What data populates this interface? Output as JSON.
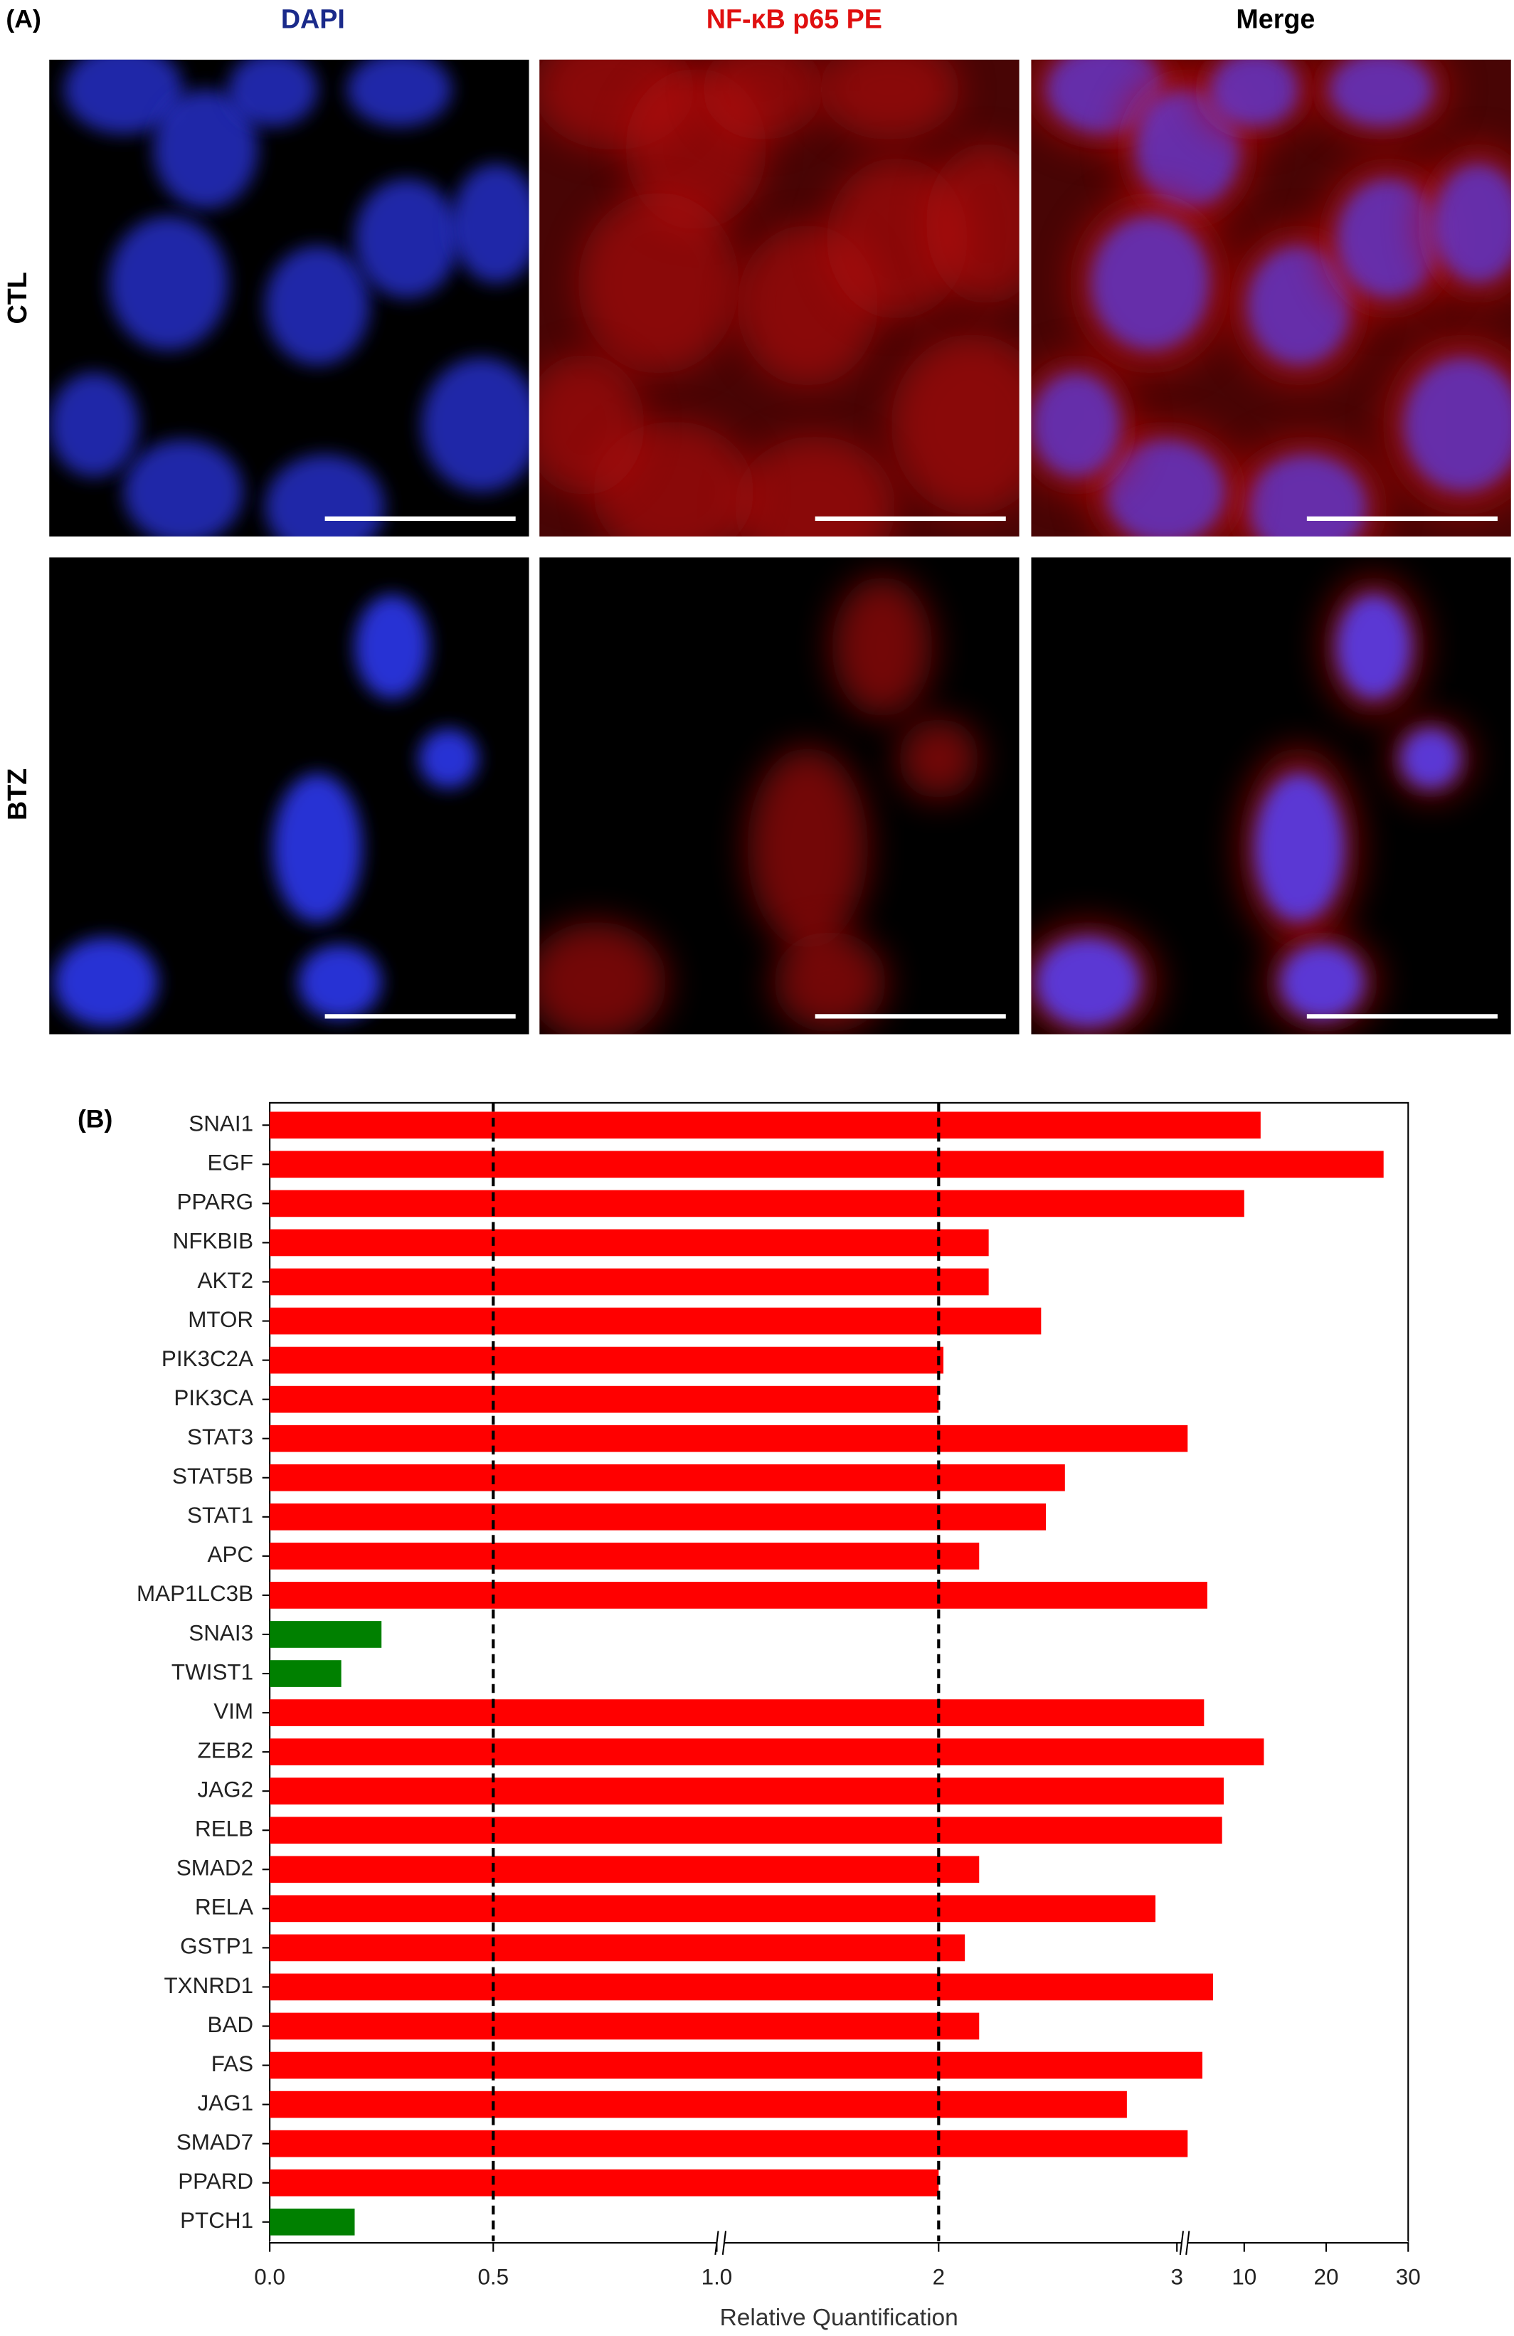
{
  "panel_a": {
    "label": "(A)",
    "columns": [
      "DAPI",
      "NF-κB p65 PE",
      "Merge"
    ],
    "rows": [
      "CTL",
      "BTZ"
    ]
  },
  "chart_data": {
    "type": "hbar",
    "panel_label": "(B)",
    "x_label": "Relative Quantification",
    "categories": [
      "SNAI1",
      "EGF",
      "PPARG",
      "NFKBIB",
      "AKT2",
      "MTOR",
      "PIK3C2A",
      "PIK3CA",
      "STAT3",
      "STAT5B",
      "STAT1",
      "APC",
      "MAP1LC3B",
      "SNAI3",
      "TWIST1",
      "VIM",
      "ZEB2",
      "JAG2",
      "RELB",
      "SMAD2",
      "RELA",
      "GSTP1",
      "TXNRD1",
      "BAD",
      "FAS",
      "JAG1",
      "SMAD7",
      "PPARD",
      "PTCH1"
    ],
    "values": [
      12,
      27,
      10,
      2.21,
      2.21,
      2.43,
      2.02,
      2.0,
      3.1,
      2.53,
      2.45,
      2.17,
      5.5,
      0.25,
      0.16,
      5.1,
      12.4,
      7.5,
      7.3,
      2.17,
      2.91,
      2.11,
      6.2,
      2.17,
      4.9,
      2.79,
      3.1,
      2.0,
      0.19
    ],
    "colors": [
      "#ff0000",
      "#ff0000",
      "#ff0000",
      "#ff0000",
      "#ff0000",
      "#ff0000",
      "#ff0000",
      "#ff0000",
      "#ff0000",
      "#ff0000",
      "#ff0000",
      "#ff0000",
      "#ff0000",
      "#008000",
      "#008000",
      "#ff0000",
      "#ff0000",
      "#ff0000",
      "#ff0000",
      "#ff0000",
      "#ff0000",
      "#ff0000",
      "#ff0000",
      "#ff0000",
      "#ff0000",
      "#ff0000",
      "#ff0000",
      "#ff0000",
      "#008000"
    ],
    "x_segments": [
      [
        0,
        1
      ],
      [
        1.1,
        3.02
      ],
      [
        3.1,
        30
      ]
    ],
    "xticks": [
      {
        "value": 0,
        "label": "0.0"
      },
      0.5,
      {
        "value": 1,
        "label": "1.0"
      },
      2,
      3,
      10,
      20,
      30
    ],
    "reference_lines": [
      0.5,
      2
    ]
  }
}
